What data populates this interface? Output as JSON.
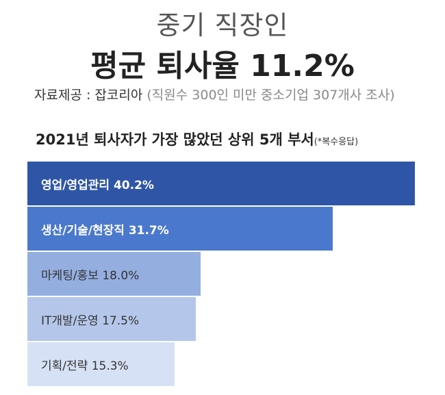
{
  "header": {
    "line1": "중기 직장인",
    "line2": "평균 퇴사율 11.2%",
    "source_label": "자료제공 : 잡코리아",
    "source_note": "(직원수 300인 미만 중소기업 307개사 조사)"
  },
  "chart_data": {
    "type": "bar",
    "orientation": "horizontal",
    "title": "2021년 퇴사자가 가장 많았던 상위 5개 부서",
    "title_note": "(*복수응답)",
    "categories": [
      "영업/영업관리",
      "생산/기술/현장직",
      "마케팅/홍보",
      "IT개발/운영",
      "기획/전략"
    ],
    "values": [
      40.2,
      31.7,
      18.0,
      17.5,
      15.3
    ],
    "labels": [
      "영업/영업관리 40.2%",
      "생산/기술/현장직 31.7%",
      "마케팅/홍보 18.0%",
      "IT개발/운영 17.5%",
      "기획/전략 15.3%"
    ],
    "colors": [
      "#2f56a6",
      "#4a78cc",
      "#94aee0",
      "#b4c7ea",
      "#d6e1f5"
    ],
    "text_colors": [
      "#ffffff",
      "#ffffff",
      "#333333",
      "#333333",
      "#333333"
    ],
    "unit": "%",
    "grid": false,
    "legend": false
  }
}
